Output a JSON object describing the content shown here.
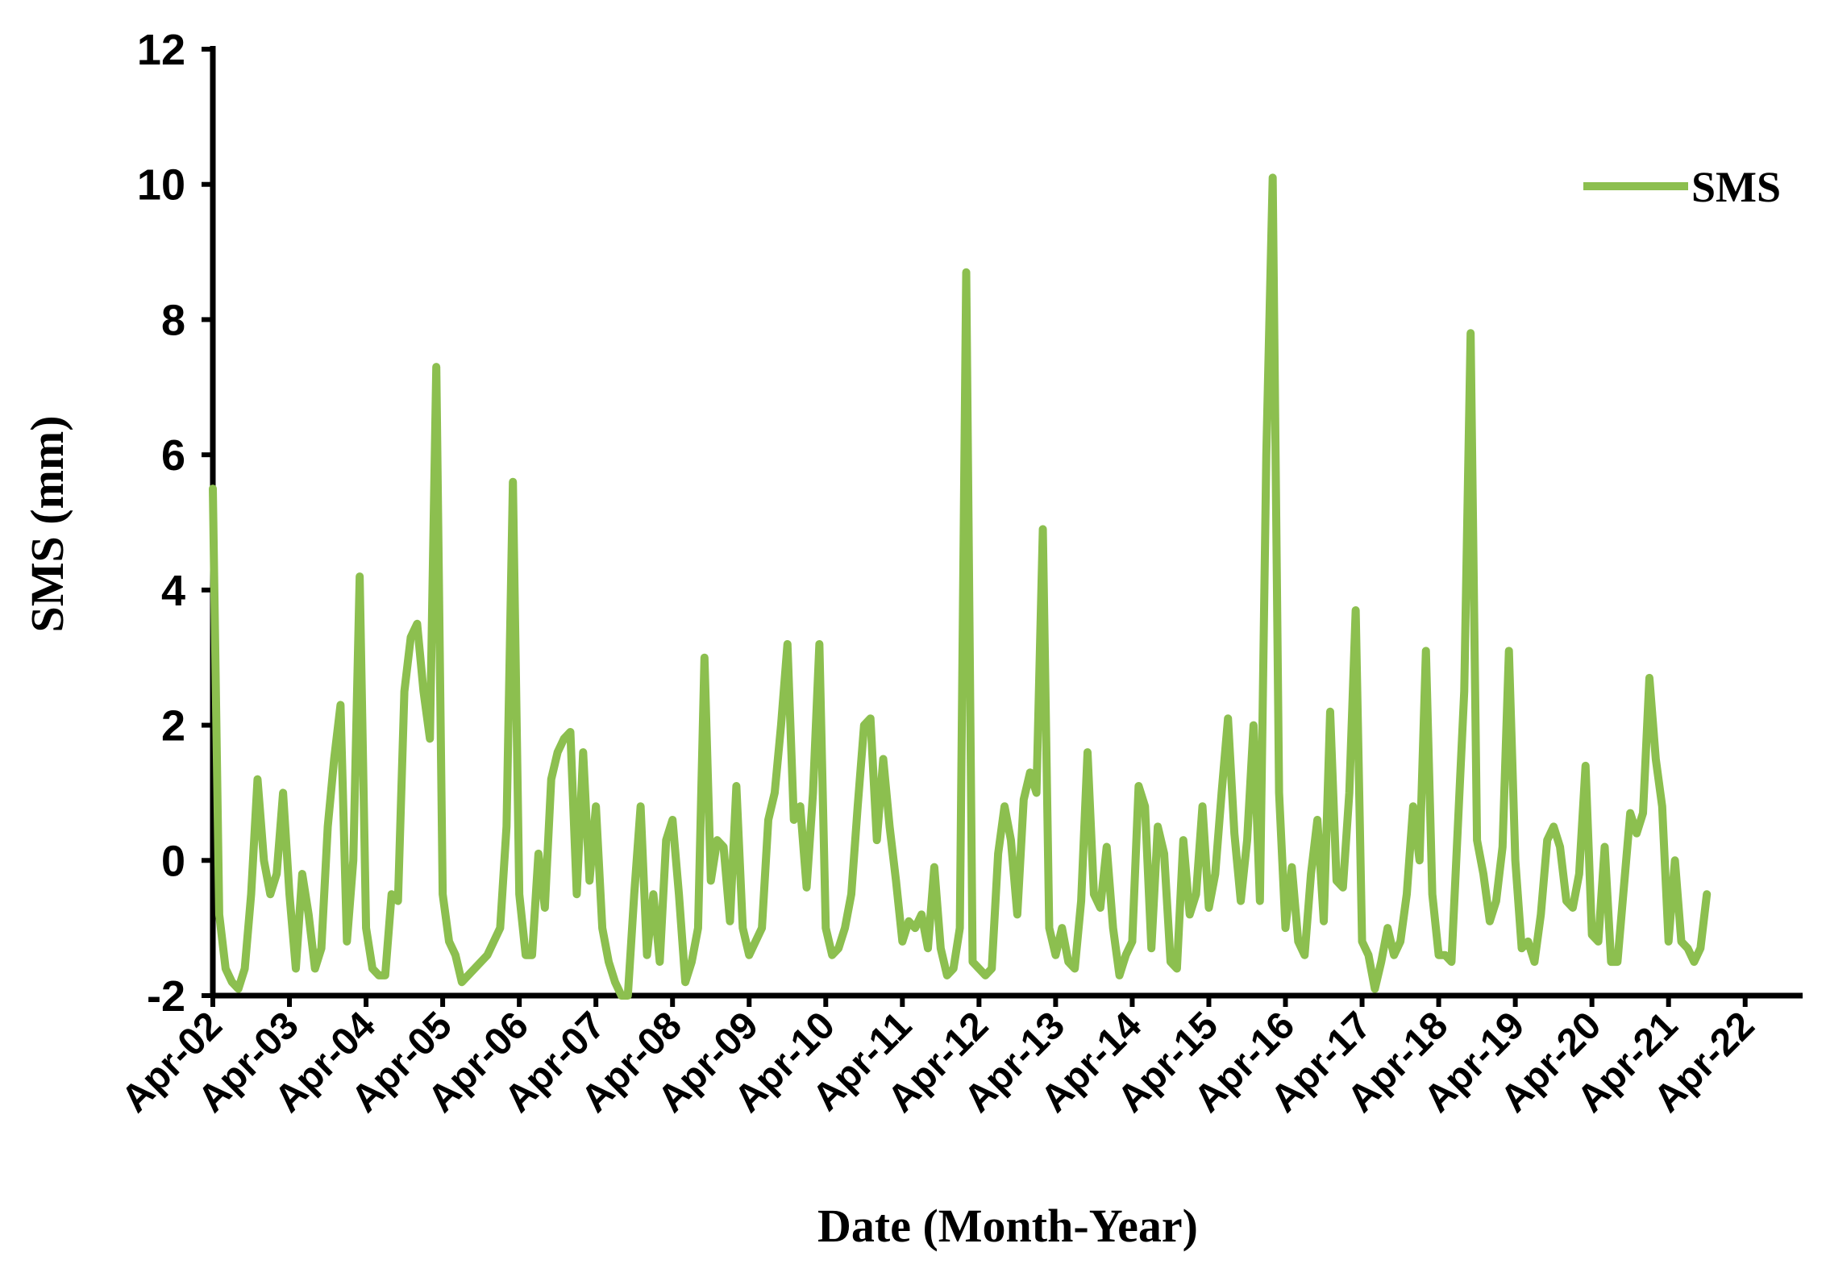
{
  "chart_data": {
    "type": "line",
    "y_label": "SMS (mm)",
    "x_label": "Date (Month-Year)",
    "x": [
      "2002-04",
      "2002-05",
      "2002-06",
      "2002-07",
      "2002-08",
      "2002-09",
      "2002-10",
      "2002-11",
      "2002-12",
      "2003-01",
      "2003-02",
      "2003-03",
      "2003-04",
      "2003-05",
      "2003-06",
      "2003-07",
      "2003-08",
      "2003-09",
      "2003-10",
      "2003-11",
      "2003-12",
      "2004-01",
      "2004-02",
      "2004-03",
      "2004-04",
      "2004-05",
      "2004-06",
      "2004-07",
      "2004-08",
      "2004-09",
      "2004-10",
      "2004-11",
      "2004-12",
      "2005-01",
      "2005-02",
      "2005-03",
      "2005-04",
      "2005-05",
      "2005-06",
      "2005-07",
      "2005-08",
      "2005-09",
      "2005-10",
      "2005-11",
      "2005-12",
      "2006-01",
      "2006-02",
      "2006-03",
      "2006-04",
      "2006-05",
      "2006-06",
      "2006-07",
      "2006-08",
      "2006-09",
      "2006-10",
      "2006-11",
      "2006-12",
      "2007-01",
      "2007-02",
      "2007-03",
      "2007-04",
      "2007-05",
      "2007-06",
      "2007-07",
      "2007-08",
      "2007-09",
      "2007-10",
      "2007-11",
      "2007-12",
      "2008-01",
      "2008-02",
      "2008-03",
      "2008-04",
      "2008-05",
      "2008-06",
      "2008-07",
      "2008-08",
      "2008-09",
      "2008-10",
      "2008-11",
      "2008-12",
      "2009-01",
      "2009-02",
      "2009-03",
      "2009-04",
      "2009-05",
      "2009-06",
      "2009-07",
      "2009-08",
      "2009-09",
      "2009-10",
      "2009-11",
      "2009-12",
      "2010-01",
      "2010-02",
      "2010-03",
      "2010-04",
      "2010-05",
      "2010-06",
      "2010-07",
      "2010-08",
      "2010-09",
      "2010-10",
      "2010-11",
      "2010-12",
      "2011-01",
      "2011-02",
      "2011-03",
      "2011-04",
      "2011-05",
      "2011-06",
      "2011-07",
      "2011-08",
      "2011-09",
      "2011-10",
      "2011-11",
      "2011-12",
      "2012-01",
      "2012-02",
      "2012-03",
      "2012-04",
      "2012-05",
      "2012-06",
      "2012-07",
      "2012-08",
      "2012-09",
      "2012-10",
      "2012-11",
      "2012-12",
      "2013-01",
      "2013-02",
      "2013-03",
      "2013-04",
      "2013-05",
      "2013-06",
      "2013-07",
      "2013-08",
      "2013-09",
      "2013-10",
      "2013-11",
      "2013-12",
      "2014-01",
      "2014-02",
      "2014-03",
      "2014-04",
      "2014-05",
      "2014-06",
      "2014-07",
      "2014-08",
      "2014-09",
      "2014-10",
      "2014-11",
      "2014-12",
      "2015-01",
      "2015-02",
      "2015-03",
      "2015-04",
      "2015-05",
      "2015-06",
      "2015-07",
      "2015-08",
      "2015-09",
      "2015-10",
      "2015-11",
      "2015-12",
      "2016-01",
      "2016-02",
      "2016-03",
      "2016-04",
      "2016-05",
      "2016-06",
      "2016-07",
      "2016-08",
      "2016-09",
      "2016-10",
      "2016-11",
      "2016-12",
      "2017-01",
      "2017-02",
      "2017-03",
      "2017-04",
      "2017-05",
      "2017-06",
      "2017-07",
      "2017-08",
      "2017-09",
      "2017-10",
      "2017-11",
      "2017-12",
      "2018-01",
      "2018-02",
      "2018-03",
      "2018-04",
      "2018-05",
      "2018-06",
      "2018-07",
      "2018-08",
      "2018-09",
      "2018-10",
      "2018-11",
      "2018-12",
      "2019-01",
      "2019-02",
      "2019-03",
      "2019-04",
      "2019-05",
      "2019-06",
      "2019-07",
      "2019-08",
      "2019-09",
      "2019-10",
      "2019-11",
      "2019-12",
      "2020-01",
      "2020-02",
      "2020-03",
      "2020-04",
      "2020-05",
      "2020-06",
      "2020-07",
      "2020-08",
      "2020-09",
      "2020-10",
      "2020-11",
      "2020-12",
      "2021-01",
      "2021-02",
      "2021-03",
      "2021-04",
      "2021-05",
      "2021-06",
      "2021-07",
      "2021-08",
      "2021-09",
      "2021-10"
    ],
    "series": [
      {
        "name": "SMS",
        "color": "#8cbf4f",
        "values": [
          5.5,
          -0.8,
          -1.6,
          -1.8,
          -1.9,
          -1.6,
          -0.5,
          1.2,
          0.0,
          -0.5,
          -0.2,
          1.0,
          -0.5,
          -1.6,
          -0.2,
          -0.8,
          -1.6,
          -1.3,
          0.5,
          1.5,
          2.3,
          -1.2,
          0.0,
          4.2,
          -1.0,
          -1.6,
          -1.7,
          -1.7,
          -0.5,
          -0.6,
          2.5,
          3.3,
          3.5,
          2.5,
          1.8,
          7.3,
          -0.5,
          -1.2,
          -1.4,
          -1.8,
          -1.7,
          -1.6,
          -1.5,
          -1.4,
          -1.2,
          -1.0,
          0.5,
          5.6,
          -0.5,
          -1.4,
          -1.4,
          0.1,
          -0.7,
          1.2,
          1.6,
          1.8,
          1.9,
          -0.5,
          1.6,
          -0.3,
          0.8,
          -1.0,
          -1.5,
          -1.8,
          -2.0,
          -2.0,
          -0.5,
          0.8,
          -1.4,
          -0.5,
          -1.5,
          0.3,
          0.6,
          -0.5,
          -1.8,
          -1.5,
          -1.0,
          3.0,
          -0.3,
          0.3,
          0.2,
          -0.9,
          1.1,
          -1.0,
          -1.4,
          -1.2,
          -1.0,
          0.6,
          1.0,
          2.0,
          3.2,
          0.6,
          0.8,
          -0.4,
          1.0,
          3.2,
          -1.0,
          -1.4,
          -1.3,
          -1.0,
          -0.5,
          0.8,
          2.0,
          2.1,
          0.3,
          1.5,
          0.5,
          -0.3,
          -1.2,
          -0.9,
          -1.0,
          -0.8,
          -1.3,
          -0.1,
          -1.3,
          -1.7,
          -1.6,
          -1.0,
          8.7,
          -1.5,
          -1.6,
          -1.7,
          -1.6,
          0.1,
          0.8,
          0.3,
          -0.8,
          0.9,
          1.3,
          1.0,
          4.9,
          -1.0,
          -1.4,
          -1.0,
          -1.5,
          -1.6,
          -0.6,
          1.6,
          -0.5,
          -0.7,
          0.2,
          -1.0,
          -1.7,
          -1.4,
          -1.2,
          1.1,
          0.8,
          -1.3,
          0.5,
          0.1,
          -1.5,
          -1.6,
          0.3,
          -0.8,
          -0.5,
          0.8,
          -0.7,
          -0.2,
          1.0,
          2.1,
          0.4,
          -0.6,
          0.3,
          2.0,
          -0.6,
          6.0,
          10.1,
          1.0,
          -1.0,
          -0.1,
          -1.2,
          -1.4,
          -0.2,
          0.6,
          -0.9,
          2.2,
          -0.3,
          -0.4,
          1.0,
          3.7,
          -1.2,
          -1.4,
          -1.9,
          -1.5,
          -1.0,
          -1.4,
          -1.2,
          -0.5,
          0.8,
          0.0,
          3.1,
          -0.5,
          -1.4,
          -1.4,
          -1.5,
          0.5,
          2.5,
          7.8,
          0.3,
          -0.2,
          -0.9,
          -0.6,
          0.2,
          3.1,
          0.0,
          -1.3,
          -1.2,
          -1.5,
          -0.8,
          0.3,
          0.5,
          0.2,
          -0.6,
          -0.7,
          -0.2,
          1.4,
          -1.1,
          -1.2,
          0.2,
          -1.5,
          -1.5,
          -0.4,
          0.7,
          0.4,
          0.7,
          2.7,
          1.5,
          0.8,
          -1.2,
          0.0,
          -1.2,
          -1.3,
          -1.5,
          -1.3,
          -0.5
        ]
      }
    ],
    "xlim": [
      "2002-04",
      "2023-01"
    ],
    "xticks": [
      {
        "value": "2002-04",
        "label": "Apr-02"
      },
      {
        "value": "2003-04",
        "label": "Apr-03"
      },
      {
        "value": "2004-04",
        "label": "Apr-04"
      },
      {
        "value": "2005-04",
        "label": "Apr-05"
      },
      {
        "value": "2006-04",
        "label": "Apr-06"
      },
      {
        "value": "2007-04",
        "label": "Apr-07"
      },
      {
        "value": "2008-04",
        "label": "Apr-08"
      },
      {
        "value": "2009-04",
        "label": "Apr-09"
      },
      {
        "value": "2010-04",
        "label": "Apr-10"
      },
      {
        "value": "2011-04",
        "label": "Apr-11"
      },
      {
        "value": "2012-04",
        "label": "Apr-12"
      },
      {
        "value": "2013-04",
        "label": "Apr-13"
      },
      {
        "value": "2014-04",
        "label": "Apr-14"
      },
      {
        "value": "2015-04",
        "label": "Apr-15"
      },
      {
        "value": "2016-04",
        "label": "Apr-16"
      },
      {
        "value": "2017-04",
        "label": "Apr-17"
      },
      {
        "value": "2018-04",
        "label": "Apr-18"
      },
      {
        "value": "2019-04",
        "label": "Apr-19"
      },
      {
        "value": "2020-04",
        "label": "Apr-20"
      },
      {
        "value": "2021-04",
        "label": "Apr-21"
      },
      {
        "value": "2022-04",
        "label": "Apr-22"
      }
    ],
    "ylim": [
      -2,
      12
    ],
    "yticks": [
      -2,
      0,
      2,
      4,
      6,
      8,
      10,
      12
    ],
    "grid": false,
    "legend": "upper-right"
  }
}
